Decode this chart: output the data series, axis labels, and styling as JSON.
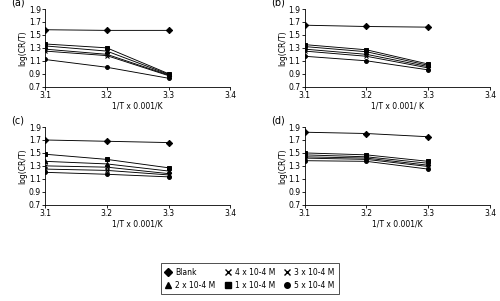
{
  "x_values": [
    3.1,
    3.2,
    3.3
  ],
  "xlim": [
    3.1,
    3.4
  ],
  "ylim": [
    0.7,
    1.9
  ],
  "yticks": [
    0.7,
    0.9,
    1.1,
    1.3,
    1.5,
    1.7,
    1.9
  ],
  "xticks": [
    3.1,
    3.2,
    3.3,
    3.4
  ],
  "xlabel": "1/T x 0.001/K",
  "ylabel": "log(CR/T)",
  "panel_labels": [
    "(a)",
    "(b)",
    "(c)",
    "(d)"
  ],
  "panel_b_xlabel": "1/T x 0.001/ K",
  "series_a": {
    "blank": [
      1.58,
      1.57,
      1.57
    ],
    "c1": [
      1.36,
      1.3,
      0.9
    ],
    "c2": [
      1.33,
      1.25,
      0.89
    ],
    "c3": [
      1.28,
      1.2,
      0.88
    ],
    "c4": [
      1.25,
      1.18,
      0.87
    ],
    "c5": [
      1.12,
      1.0,
      0.83
    ]
  },
  "series_b": {
    "blank": [
      1.65,
      1.63,
      1.62
    ],
    "c1": [
      1.35,
      1.27,
      1.05
    ],
    "c2": [
      1.32,
      1.24,
      1.03
    ],
    "c3": [
      1.28,
      1.2,
      1.01
    ],
    "c4": [
      1.25,
      1.17,
      0.99
    ],
    "c5": [
      1.17,
      1.1,
      0.96
    ]
  },
  "series_c": {
    "blank": [
      1.7,
      1.68,
      1.66
    ],
    "c1": [
      1.48,
      1.4,
      1.27
    ],
    "c2": [
      1.37,
      1.33,
      1.22
    ],
    "c3": [
      1.3,
      1.28,
      1.18
    ],
    "c4": [
      1.25,
      1.23,
      1.16
    ],
    "c5": [
      1.2,
      1.17,
      1.13
    ]
  },
  "series_d": {
    "blank": [
      1.82,
      1.8,
      1.75
    ],
    "c1": [
      1.5,
      1.47,
      1.37
    ],
    "c2": [
      1.47,
      1.44,
      1.34
    ],
    "c3": [
      1.44,
      1.42,
      1.31
    ],
    "c4": [
      1.42,
      1.4,
      1.29
    ],
    "c5": [
      1.38,
      1.37,
      1.25
    ]
  },
  "legend_entries": [
    {
      "label": "Blank",
      "marker": "D",
      "mfc": "black"
    },
    {
      "label": "2 x 10-4 M",
      "marker": "^",
      "mfc": "black"
    },
    {
      "label": "4 x 10-4 M",
      "marker": "x",
      "mfc": "none"
    },
    {
      "label": "1 x 10-4 M",
      "marker": "s",
      "mfc": "black"
    },
    {
      "label": "3 x 10-4 M",
      "marker": "x",
      "mfc": "none"
    },
    {
      "label": "5 x 10-4 M",
      "marker": "o",
      "mfc": "black"
    }
  ]
}
